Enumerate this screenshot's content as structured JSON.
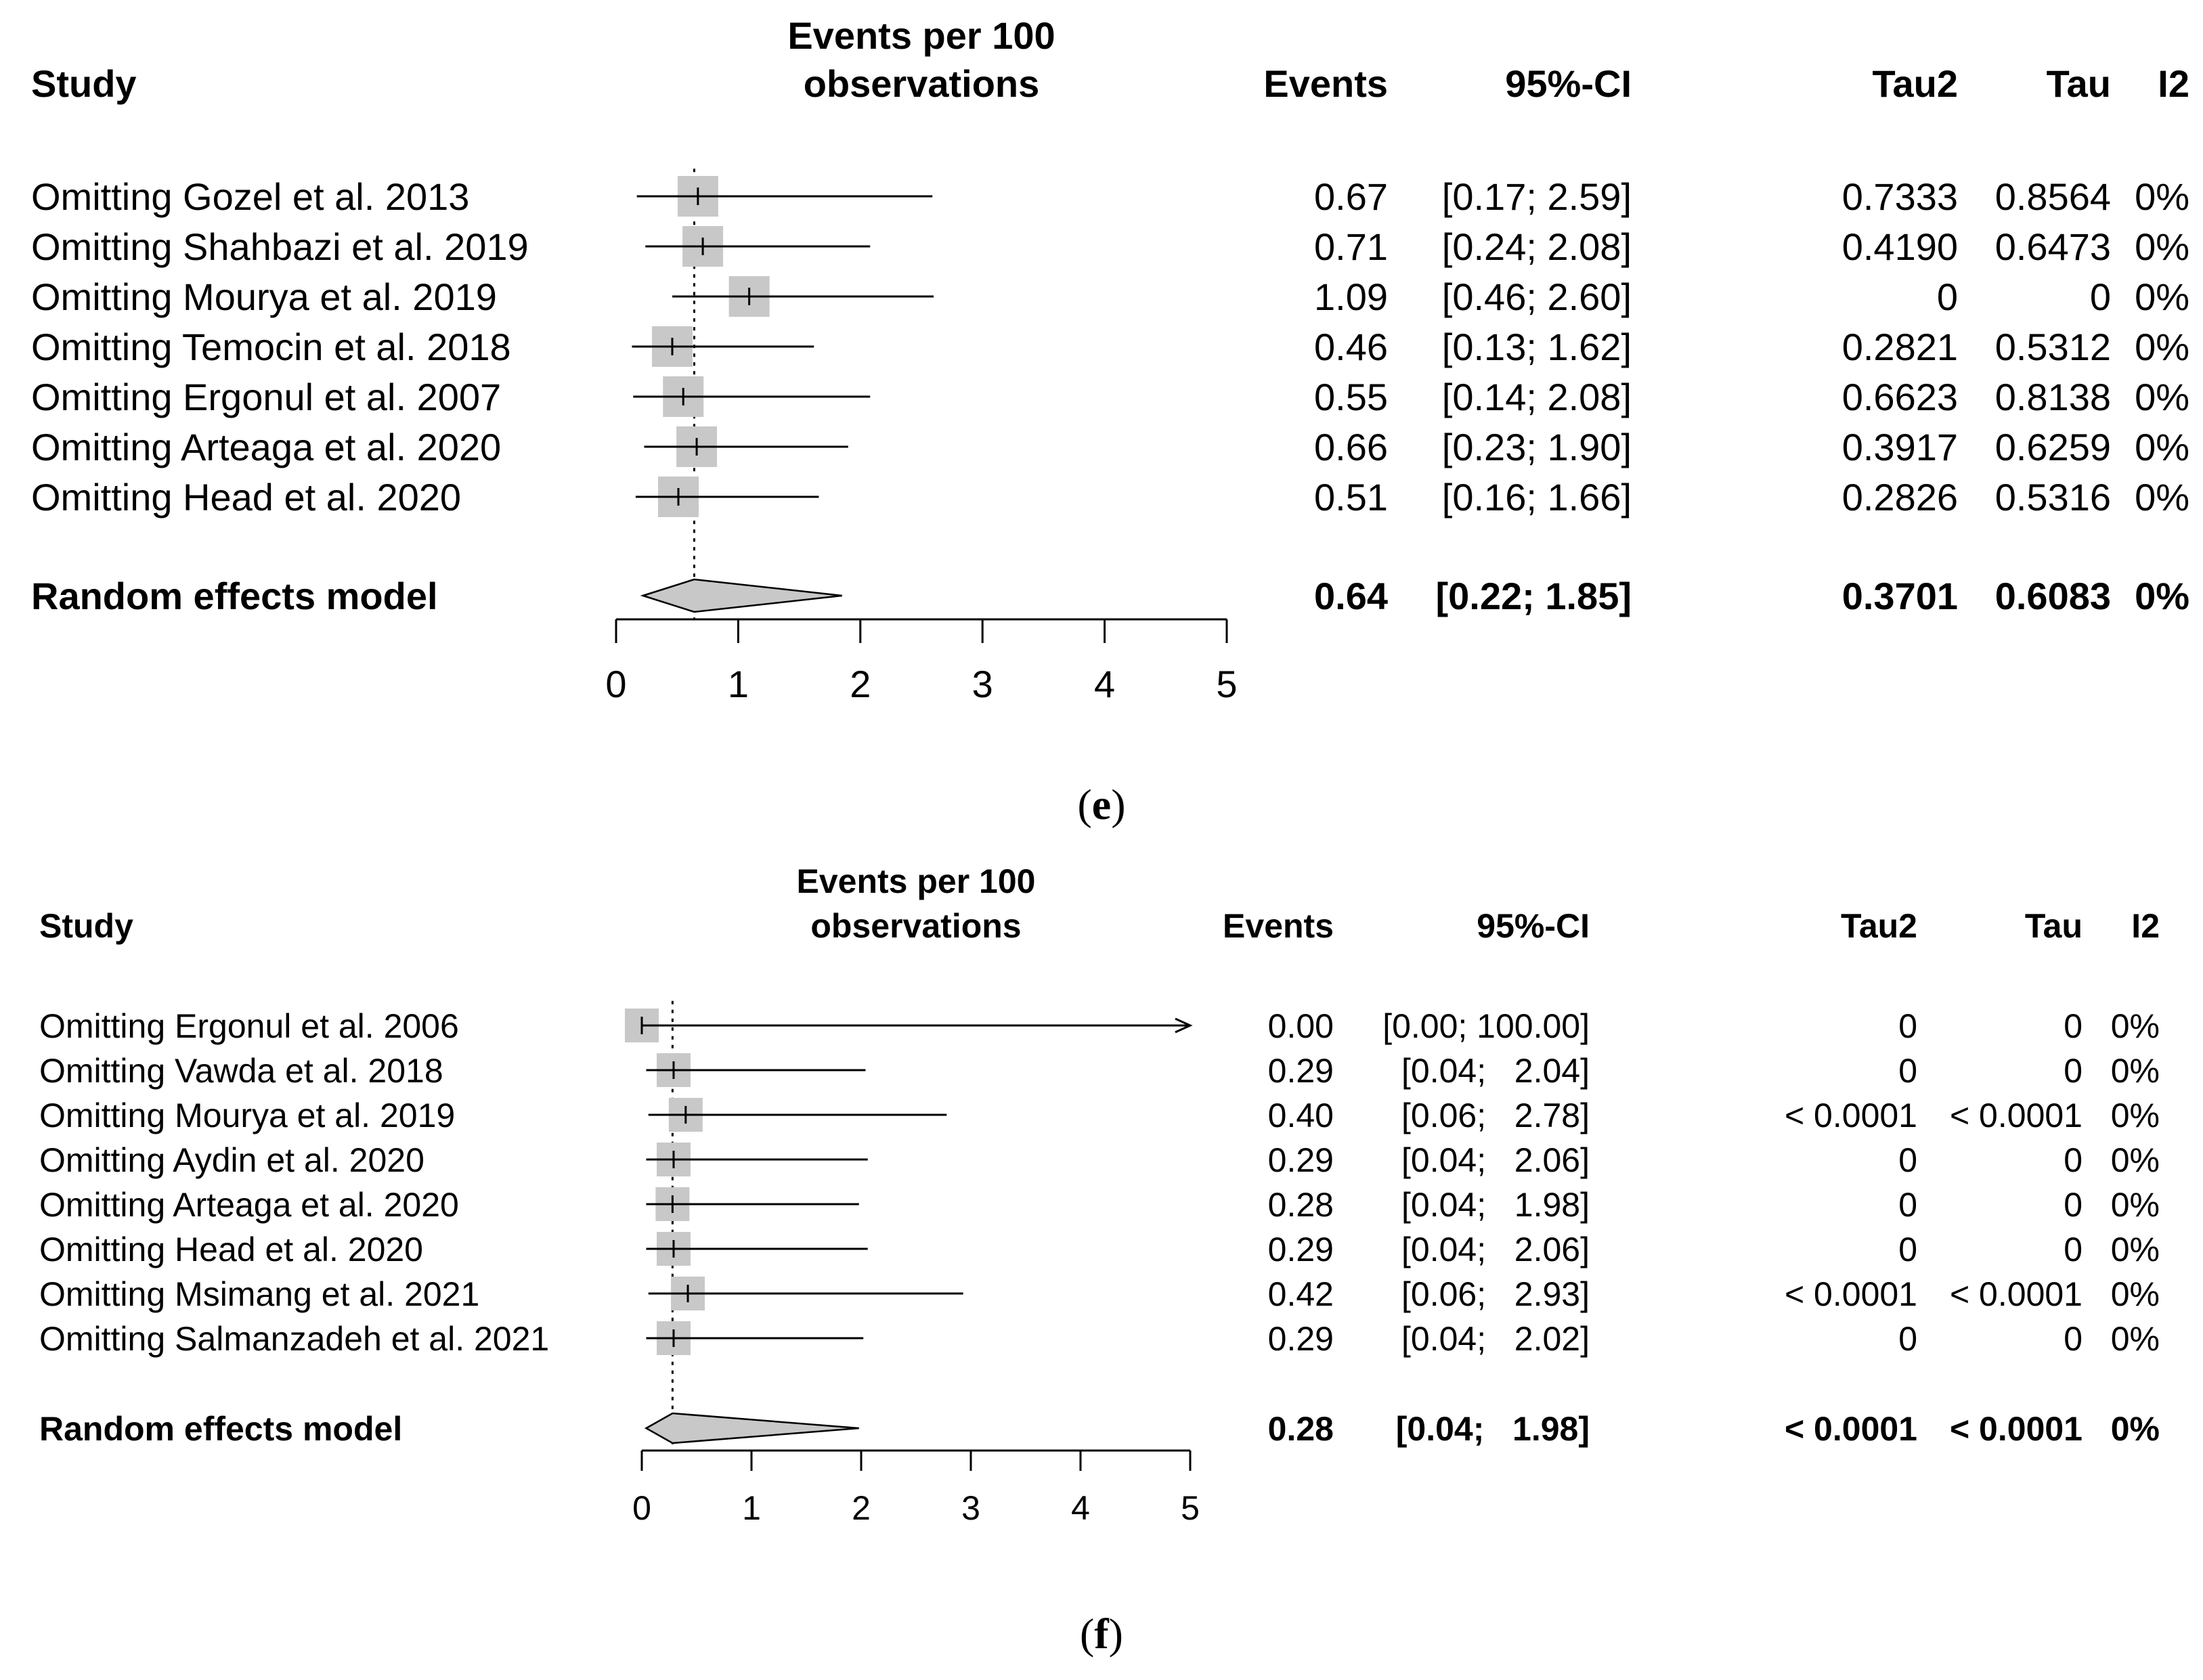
{
  "chart_data": [
    {
      "type": "forest",
      "panel_label": "(e)",
      "panel_letter": "e",
      "headers": {
        "study": "Study",
        "axis_title_line1": "Events per 100",
        "axis_title_line2": "observations",
        "events": "Events",
        "ci": "95%-CI",
        "tau2": "Tau2",
        "tau": "Tau",
        "i2": "I2"
      },
      "studies": [
        {
          "name": "Omitting Gozel et al. 2013",
          "events": 0.67,
          "ci_low": 0.17,
          "ci_high": 2.59,
          "events_text": "0.67",
          "ci_text": "[0.17; 2.59]",
          "tau2": "0.7333",
          "tau": "0.8564",
          "i2": "0%"
        },
        {
          "name": "Omitting Shahbazi et al. 2019",
          "events": 0.71,
          "ci_low": 0.24,
          "ci_high": 2.08,
          "events_text": "0.71",
          "ci_text": "[0.24; 2.08]",
          "tau2": "0.4190",
          "tau": "0.6473",
          "i2": "0%"
        },
        {
          "name": "Omitting Mourya et al. 2019",
          "events": 1.09,
          "ci_low": 0.46,
          "ci_high": 2.6,
          "events_text": "1.09",
          "ci_text": "[0.46; 2.60]",
          "tau2": "0",
          "tau": "0",
          "i2": "0%"
        },
        {
          "name": "Omitting Temocin et al. 2018",
          "events": 0.46,
          "ci_low": 0.13,
          "ci_high": 1.62,
          "events_text": "0.46",
          "ci_text": "[0.13; 1.62]",
          "tau2": "0.2821",
          "tau": "0.5312",
          "i2": "0%"
        },
        {
          "name": "Omitting Ergonul et al. 2007",
          "events": 0.55,
          "ci_low": 0.14,
          "ci_high": 2.08,
          "events_text": "0.55",
          "ci_text": "[0.14; 2.08]",
          "tau2": "0.6623",
          "tau": "0.8138",
          "i2": "0%"
        },
        {
          "name": "Omitting Arteaga et al. 2020",
          "events": 0.66,
          "ci_low": 0.23,
          "ci_high": 1.9,
          "events_text": "0.66",
          "ci_text": "[0.23; 1.90]",
          "tau2": "0.3917",
          "tau": "0.6259",
          "i2": "0%"
        },
        {
          "name": "Omitting Head et al. 2020",
          "events": 0.51,
          "ci_low": 0.16,
          "ci_high": 1.66,
          "events_text": "0.51",
          "ci_text": "[0.16; 1.66]",
          "tau2": "0.2826",
          "tau": "0.5316",
          "i2": "0%"
        }
      ],
      "summary": {
        "name": "Random effects model",
        "events": 0.64,
        "ci_low": 0.22,
        "ci_high": 1.85,
        "events_text": "0.64",
        "ci_text": "[0.22; 1.85]",
        "tau2": "0.3701",
        "tau": "0.6083",
        "i2": "0%"
      },
      "xlim": [
        0,
        5
      ],
      "xticks": [
        "0",
        "1",
        "2",
        "3",
        "4",
        "5"
      ],
      "reference_line": 0.64
    },
    {
      "type": "forest",
      "panel_label": "(f)",
      "panel_letter": "f",
      "headers": {
        "study": "Study",
        "axis_title_line1": "Events per 100",
        "axis_title_line2": "observations",
        "events": "Events",
        "ci": "95%-CI",
        "tau2": "Tau2",
        "tau": "Tau",
        "i2": "I2"
      },
      "studies": [
        {
          "name": "Omitting Ergonul et al. 2006",
          "events": 0.0,
          "ci_low": 0.0,
          "ci_high": 100.0,
          "events_text": "0.00",
          "ci_text": "[0.00; 100.00]",
          "tau2": "0",
          "tau": "0",
          "i2": "0%"
        },
        {
          "name": "Omitting Vawda et al. 2018",
          "events": 0.29,
          "ci_low": 0.04,
          "ci_high": 2.04,
          "events_text": "0.29",
          "ci_text": "[0.04;   2.04]",
          "tau2": "0",
          "tau": "0",
          "i2": "0%"
        },
        {
          "name": "Omitting Mourya et al. 2019",
          "events": 0.4,
          "ci_low": 0.06,
          "ci_high": 2.78,
          "events_text": "0.40",
          "ci_text": "[0.06;   2.78]",
          "tau2": "< 0.0001",
          "tau": "< 0.0001",
          "i2": "0%"
        },
        {
          "name": "Omitting Aydin et al. 2020",
          "events": 0.29,
          "ci_low": 0.04,
          "ci_high": 2.06,
          "events_text": "0.29",
          "ci_text": "[0.04;   2.06]",
          "tau2": "0",
          "tau": "0",
          "i2": "0%"
        },
        {
          "name": "Omitting Arteaga et al. 2020",
          "events": 0.28,
          "ci_low": 0.04,
          "ci_high": 1.98,
          "events_text": "0.28",
          "ci_text": "[0.04;   1.98]",
          "tau2": "0",
          "tau": "0",
          "i2": "0%"
        },
        {
          "name": "Omitting Head et al. 2020",
          "events": 0.29,
          "ci_low": 0.04,
          "ci_high": 2.06,
          "events_text": "0.29",
          "ci_text": "[0.04;   2.06]",
          "tau2": "0",
          "tau": "0",
          "i2": "0%"
        },
        {
          "name": "Omitting Msimang et al. 2021",
          "events": 0.42,
          "ci_low": 0.06,
          "ci_high": 2.93,
          "events_text": "0.42",
          "ci_text": "[0.06;   2.93]",
          "tau2": "< 0.0001",
          "tau": "< 0.0001",
          "i2": "0%"
        },
        {
          "name": "Omitting Salmanzadeh et al. 2021",
          "events": 0.29,
          "ci_low": 0.04,
          "ci_high": 2.02,
          "events_text": "0.29",
          "ci_text": "[0.04;   2.02]",
          "tau2": "0",
          "tau": "0",
          "i2": "0%"
        }
      ],
      "summary": {
        "name": "Random effects model",
        "events": 0.28,
        "ci_low": 0.04,
        "ci_high": 1.98,
        "events_text": "0.28",
        "ci_text": "[0.04;   1.98]",
        "tau2": "< 0.0001",
        "tau": "< 0.0001",
        "i2": "0%"
      },
      "xlim": [
        0,
        5
      ],
      "xticks": [
        "0",
        "1",
        "2",
        "3",
        "4",
        "5"
      ],
      "reference_line": 0.28
    }
  ],
  "colors": {
    "square_fill": "#c8c8c8",
    "diamond_fill": "#c8c8c8",
    "line": "#000000"
  }
}
